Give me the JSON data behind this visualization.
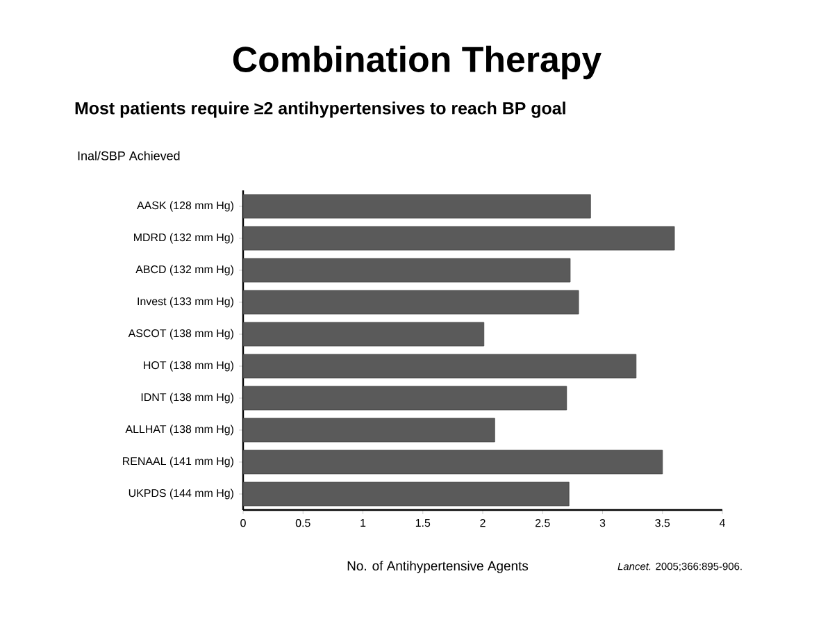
{
  "chart_data": {
    "type": "bar",
    "orientation": "horizontal",
    "title": "Combination Therapy",
    "subtitle": "Most patients require ≥2 antihypertensives to reach BP goal",
    "ylabel": "Inal/SBP Achieved",
    "xlabel": "No. of Antihypertensive Agents",
    "annotations": [
      "*Lancet.* 2005;366:895-906."
    ],
    "categories": [
      "AASK (128 mm Hg)",
      "MDRD (132 mm Hg)",
      "ABCD (132 mm Hg)",
      "Invest (133 mm Hg)",
      "ASCOT (138 mm Hg)",
      "HOT (138 mm Hg)",
      "IDNT (138 mm Hg)",
      "ALLHAT (138 mm Hg)",
      "RENAAL (141 mm Hg)",
      "UKPDS (144 mm Hg)"
    ],
    "values": [
      2.9,
      3.6,
      2.73,
      2.8,
      2.01,
      3.28,
      2.7,
      2.1,
      3.5,
      2.72
    ],
    "color": "#5a5a5a",
    "xlim": [
      0,
      4
    ],
    "xticks": [
      0,
      0.5,
      1,
      1.5,
      2,
      2.5,
      3,
      3.5,
      4
    ],
    "grid": false
  }
}
